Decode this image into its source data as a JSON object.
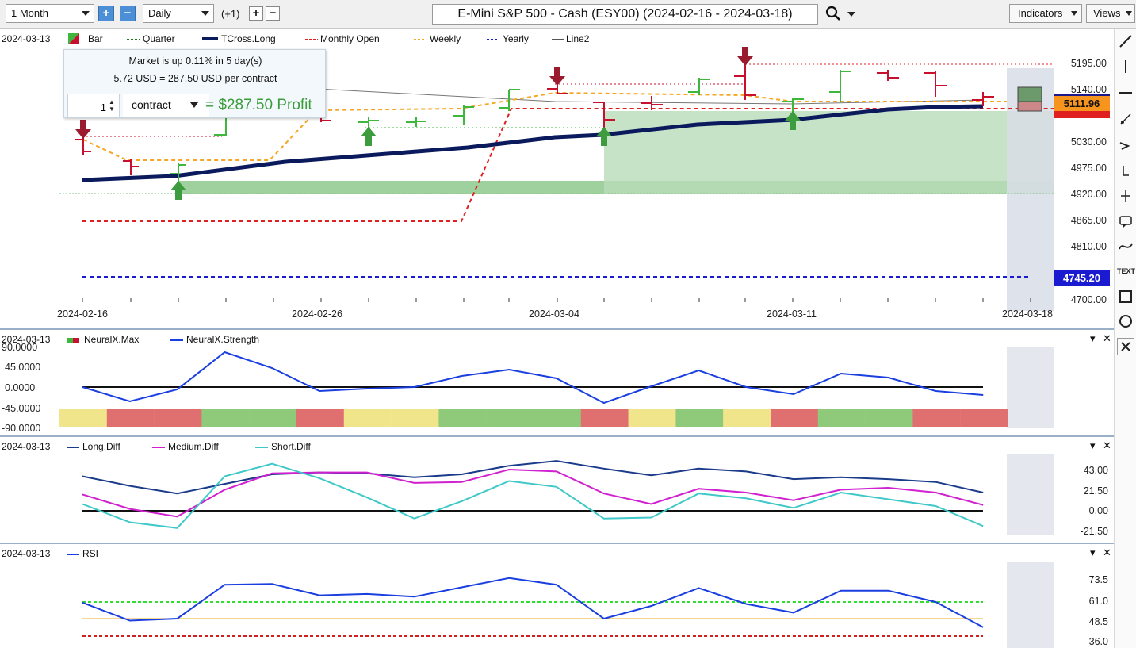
{
  "toolbar": {
    "range": "1 Month",
    "interval": "Daily",
    "offset": "(+1)",
    "title": "E-Mini S&P 500 - Cash (ESY00) (2024-02-16 - 2024-03-18)",
    "indicators": "Indicators",
    "views": "Views"
  },
  "icons": {
    "plus": "plus-icon",
    "minus": "minus-icon",
    "search": "search-icon",
    "close": "close-icon"
  },
  "main_legend": {
    "date": "2024-03-13",
    "items": [
      "Bar",
      "Quarter",
      "TCross.Long",
      "Monthly Open",
      "Weekly",
      "Yearly",
      "Line2"
    ]
  },
  "tooltip": {
    "line1": "Market is up 0.11% in 5 day(s)",
    "line2": "5.72 USD = 287.50 USD per contract",
    "quantity": "1",
    "unit": "contract",
    "profit": "= $287.50 Profit"
  },
  "price_axis": {
    "labels": [
      "5195.00",
      "5140.00",
      "5030.00",
      "4975.00",
      "4920.00",
      "4865.00",
      "4810.00",
      "4700.00"
    ],
    "last_price": "5111.96",
    "yearly_price": "4745.20"
  },
  "date_axis": [
    "2024-02-16",
    "2024-02-26",
    "2024-03-04",
    "2024-03-11",
    "2024-03-18"
  ],
  "neuralx": {
    "date": "2024-03-13",
    "items": [
      "NeuralX.Max",
      "NeuralX.Strength"
    ],
    "axis": [
      "90.0000",
      "45.0000",
      "0.0000",
      "-45.0000",
      "-90.0000"
    ],
    "strength": [
      0,
      -18,
      -3,
      44,
      24,
      -5,
      -2,
      0,
      14,
      22,
      11,
      -20,
      1,
      21,
      0,
      -9,
      17,
      12,
      -5,
      -10
    ],
    "max_colors": [
      "#f1e58c",
      "#e07070",
      "#e07070",
      "#8fc97a",
      "#8fc97a",
      "#e07070",
      "#f1e58c",
      "#f1e58c",
      "#8fc97a",
      "#8fc97a",
      "#8fc97a",
      "#e07070",
      "#f1e58c",
      "#8fc97a",
      "#f1e58c",
      "#e07070",
      "#8fc97a",
      "#8fc97a",
      "#e07070",
      "#e07070"
    ]
  },
  "diff": {
    "date": "2024-03-13",
    "items": [
      "Long.Diff",
      "Medium.Diff",
      "Short.Diff"
    ],
    "axis": [
      "43.00",
      "21.50",
      "0.00",
      "-21.50"
    ],
    "long": [
      36,
      26,
      18,
      28,
      38,
      40,
      39,
      35,
      38,
      47,
      52,
      44,
      37,
      44,
      41,
      33,
      35,
      33,
      30,
      19
    ],
    "medium": [
      17,
      2,
      -6,
      22,
      39,
      40,
      40,
      29,
      30,
      43,
      41,
      18,
      7,
      23,
      19,
      11,
      22,
      24,
      19,
      6
    ],
    "short": [
      7,
      -12,
      -18,
      36,
      49,
      34,
      14,
      -8,
      10,
      31,
      25,
      -8,
      -7,
      18,
      13,
      3,
      19,
      12,
      5,
      -16
    ]
  },
  "rsi": {
    "date": "2024-03-13",
    "items": [
      "RSI"
    ],
    "axis": [
      "73.5",
      "61.0",
      "48.5",
      "36.0"
    ],
    "values": [
      60.5,
      47,
      48.5,
      74,
      74.5,
      66,
      67,
      65,
      72,
      79,
      74,
      48.5,
      58,
      71.5,
      59.5,
      53,
      69.5,
      69.5,
      61,
      42
    ]
  },
  "colors": {
    "up": "#3db83d",
    "down": "#c8102e",
    "tcross": "#0a1a5c",
    "weekly": "#f5a623",
    "yearly": "#1a1ad0",
    "monthly": "#e02020",
    "line2": "#777777",
    "strength": "#1a3fe0",
    "long": "#1a3a8a",
    "medium": "#d020d0",
    "short": "#40c8c8",
    "rsi": "#1a3fe0"
  }
}
